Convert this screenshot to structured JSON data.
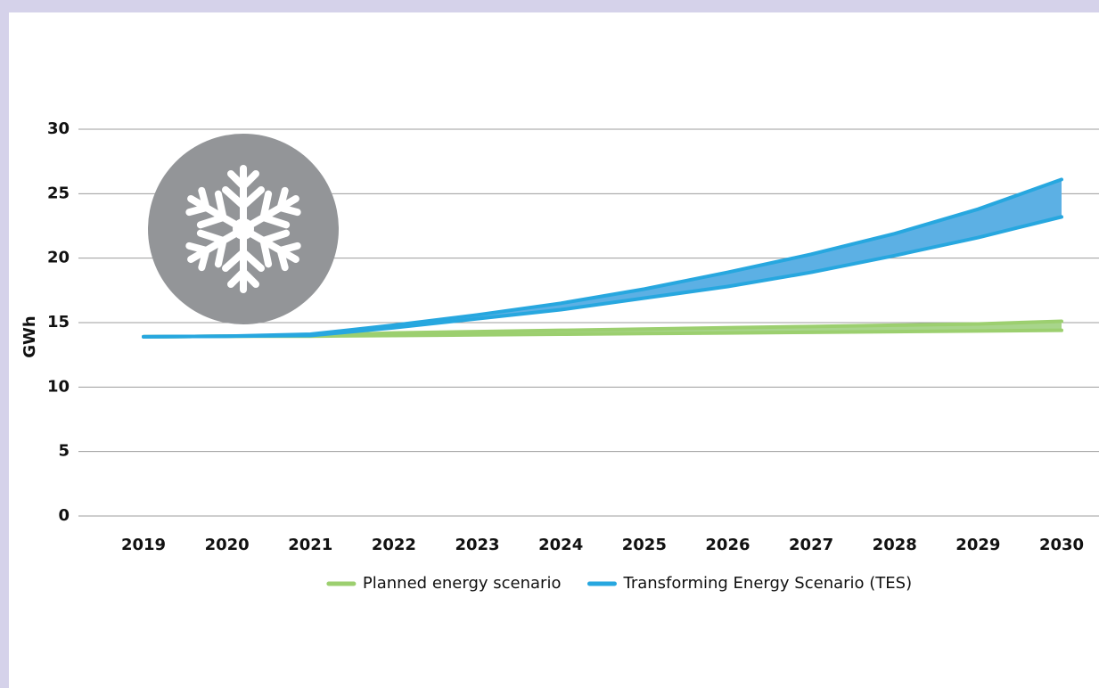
{
  "chart_data": {
    "type": "range-area",
    "y_label": "GWh",
    "categories": [
      "2019",
      "2020",
      "2021",
      "2022",
      "2023",
      "2024",
      "2025",
      "2026",
      "2027",
      "2028",
      "2029",
      "2030"
    ],
    "series": [
      {
        "name": "Planned energy scenario",
        "color": "#9ccf6f",
        "fill": "#a8d58b",
        "low": [
          13.9,
          13.95,
          13.95,
          14.0,
          14.05,
          14.1,
          14.15,
          14.2,
          14.25,
          14.3,
          14.35,
          14.4
        ],
        "high": [
          13.9,
          13.95,
          14.0,
          14.2,
          14.3,
          14.4,
          14.5,
          14.6,
          14.7,
          14.8,
          14.9,
          15.1
        ]
      },
      {
        "name": "Transforming Energy Scenario (TES)",
        "color": "#27a7df",
        "fill": "#5cb0e4",
        "low": [
          13.9,
          13.95,
          14.0,
          14.6,
          15.3,
          16.0,
          16.9,
          17.8,
          18.9,
          20.2,
          21.6,
          23.2
        ],
        "high": [
          13.9,
          13.95,
          14.1,
          14.8,
          15.6,
          16.5,
          17.6,
          18.9,
          20.3,
          21.9,
          23.8,
          26.1
        ]
      }
    ],
    "ylim": [
      0,
      30
    ],
    "yticks": [
      0,
      5,
      10,
      15,
      20,
      25,
      30
    ],
    "grid": true
  }
}
